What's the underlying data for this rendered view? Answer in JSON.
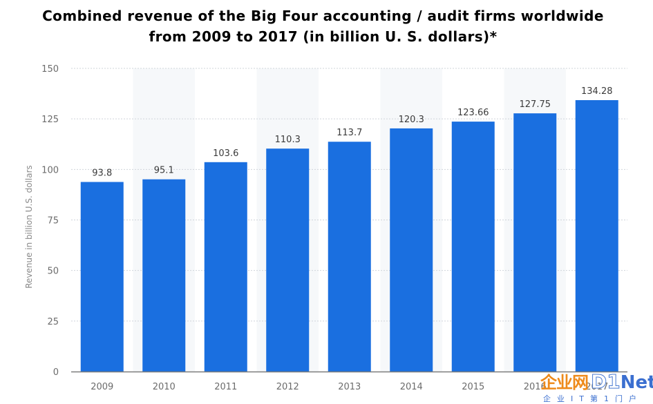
{
  "chart_data": {
    "type": "bar",
    "title_lines": [
      "Combined revenue of the Big Four accounting / audit firms worldwide",
      "from 2009 to 2017 (in billion U. S. dollars)*"
    ],
    "categories": [
      "2009",
      "2010",
      "2011",
      "2012",
      "2013",
      "2014",
      "2015",
      "2016",
      "2017"
    ],
    "values": [
      93.8,
      95.1,
      103.6,
      110.3,
      113.7,
      120.3,
      123.66,
      127.75,
      134.28
    ],
    "data_labels": [
      "93.8",
      "95.1",
      "103.6",
      "110.3",
      "113.7",
      "120.3",
      "123.66",
      "127.75",
      "134.28"
    ],
    "ylabel": "Revenue in billion U.S. dollars",
    "xlabel": "",
    "ylim": [
      0,
      150
    ],
    "yticks": [
      "0",
      "25",
      "50",
      "75",
      "100",
      "125",
      "150"
    ],
    "grid": true,
    "colors": {
      "bar": "#1a6fe0",
      "grid": "#cfd4da",
      "axis_text": "#6b6b6b",
      "band": "#f6f8fa"
    }
  },
  "watermark": {
    "brand_cn": "企业网",
    "brand_num": "D1",
    "brand_net": "Net",
    "sub": "企业IT第1门户"
  }
}
